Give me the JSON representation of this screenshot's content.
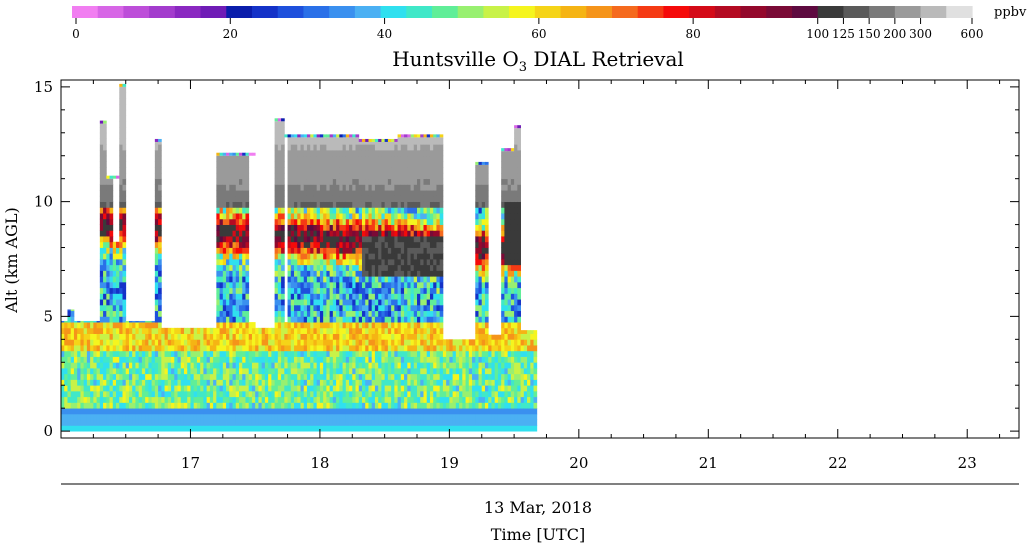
{
  "chart_data": {
    "type": "heatmap",
    "title": "Huntsville O",
    "title_sub": "3",
    "title_rest": " DIAL Retrieval",
    "ylabel": "Alt (km AGL)",
    "xlabel_date": "13 Mar, 2018",
    "xlabel": "Time [UTC]",
    "xlim": [
      16,
      23.4
    ],
    "ylim": [
      -0.3,
      15.3
    ],
    "x_ticks": [
      "17",
      "18",
      "19",
      "20",
      "21",
      "22",
      "23"
    ],
    "y_ticks": [
      "0",
      "5",
      "10",
      "15"
    ],
    "colorbar": {
      "unit": "ppbv",
      "tick_labels": [
        "0",
        "20",
        "40",
        "60",
        "80",
        "100",
        "125",
        "150",
        "200",
        "300",
        "600"
      ],
      "colors": [
        "#f17ef1",
        "#d766e6",
        "#bd4ed9",
        "#a33ccd",
        "#8a28c1",
        "#6f1cb6",
        "#0a1dab",
        "#1432c8",
        "#1e50dc",
        "#2a70e8",
        "#3a90ef",
        "#4bb0f3",
        "#30e0ef",
        "#40e8c8",
        "#60ee98",
        "#98f070",
        "#c8f248",
        "#f5f51e",
        "#f5d418",
        "#f5b414",
        "#f5941a",
        "#f56a1e",
        "#f53a14",
        "#f50a0a",
        "#d40a18",
        "#b40a22",
        "#94082c",
        "#7a0a36",
        "#5e0a40",
        "#3a3a3a",
        "#5a5a5a",
        "#7a7a7a",
        "#9a9a9a",
        "#bababa",
        "#e0e0e0"
      ]
    },
    "grid": false,
    "legend": "top-colorbar"
  }
}
